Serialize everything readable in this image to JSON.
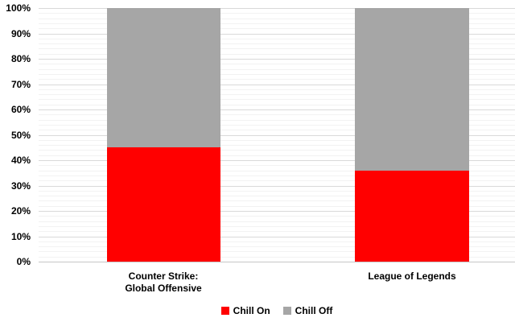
{
  "chart_data": {
    "type": "bar",
    "stacked": true,
    "orientation": "vertical",
    "title": "",
    "categories": [
      "Counter Strike:\nGlobal Offensive",
      "League of Legends"
    ],
    "series": [
      {
        "name": "Chill On",
        "color": "#ff0000",
        "values": [
          45,
          36
        ]
      },
      {
        "name": "Chill Off",
        "color": "#a6a6a6",
        "values": [
          55,
          64
        ]
      }
    ],
    "ylabel": "",
    "xlabel": "",
    "ylim": [
      0,
      100
    ],
    "y_tick_interval": 10,
    "y_minor_gridline_interval": 2,
    "y_tick_labels": [
      "0%",
      "10%",
      "20%",
      "30%",
      "40%",
      "50%",
      "60%",
      "70%",
      "80%",
      "90%",
      "100%"
    ],
    "grid": true,
    "legend_position": "bottom"
  },
  "colors": {
    "major_gridline": "#d9d9d9",
    "minor_gridline": "#f2f2f2",
    "axis_line": "#c6c6c6",
    "label_text": "#000000",
    "background": "#ffffff"
  }
}
